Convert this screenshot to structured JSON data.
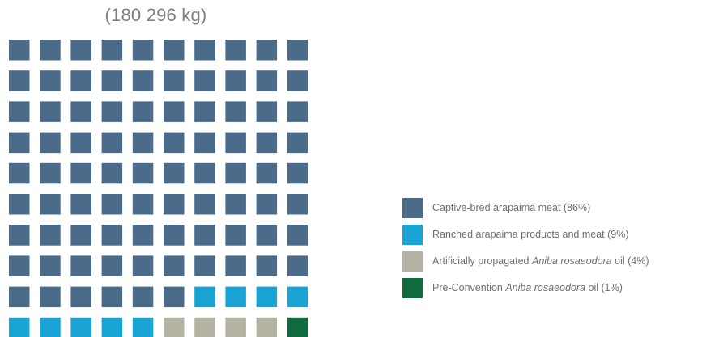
{
  "chart_data": {
    "type": "waffle",
    "title": "(180 296 kg)",
    "grid": {
      "rows": 10,
      "cols": 10
    },
    "total_units": 100,
    "series": [
      {
        "name": "Captive-bred arapaima meat (86%)",
        "label_parts": [
          {
            "text": "Captive-bred arapaima meat (86%)",
            "italic": false
          }
        ],
        "units": 86,
        "color": "#4a6b8a"
      },
      {
        "name": "Ranched arapaima products and meat (9%)",
        "label_parts": [
          {
            "text": "Ranched arapaima products and meat (9%)",
            "italic": false
          }
        ],
        "units": 9,
        "color": "#1aa3d5"
      },
      {
        "name": "Artificially propagated Aniba rosaeodora oil (4%)",
        "label_parts": [
          {
            "text": "Artificially propagated ",
            "italic": false
          },
          {
            "text": "Aniba rosaeodora",
            "italic": true
          },
          {
            "text": " oil (4%)",
            "italic": false
          }
        ],
        "units": 4,
        "color": "#b4b2a2"
      },
      {
        "name": "Pre-Convention Aniba rosaeodora oil (1%)",
        "label_parts": [
          {
            "text": "Pre-Convention ",
            "italic": false
          },
          {
            "text": "Aniba rosaeodora",
            "italic": true
          },
          {
            "text": " oil (1%)",
            "italic": false
          }
        ],
        "units": 1,
        "color": "#0f6a3e"
      }
    ],
    "legend_position": "right"
  }
}
